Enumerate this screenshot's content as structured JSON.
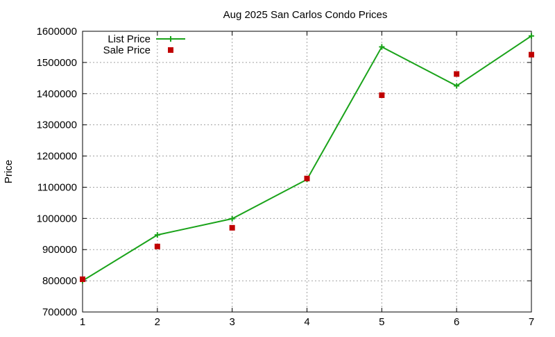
{
  "chart_data": {
    "type": "line",
    "title": "Aug 2025 San Carlos Condo Prices",
    "xlabel": "",
    "ylabel": "Price",
    "x": [
      1,
      2,
      3,
      4,
      5,
      6,
      7
    ],
    "xlim": [
      1,
      7
    ],
    "ylim": [
      700000,
      1600000
    ],
    "xticks": [
      "1",
      "2",
      "3",
      "4",
      "5",
      "6",
      "7"
    ],
    "yticks": [
      "700000",
      "800000",
      "900000",
      "1000000",
      "1100000",
      "1200000",
      "1300000",
      "1400000",
      "1500000",
      "1600000"
    ],
    "grid": true,
    "legend_position": "top-left",
    "series": [
      {
        "name": "List Price",
        "style": "line-plus",
        "color": "#1aa31a",
        "values": [
          800000,
          947000,
          999000,
          1125000,
          1550000,
          1425000,
          1585000
        ]
      },
      {
        "name": "Sale Price",
        "style": "square-points",
        "color": "#c00000",
        "values": [
          805000,
          910000,
          970000,
          1128000,
          1395000,
          1463000,
          1525000
        ]
      }
    ]
  }
}
